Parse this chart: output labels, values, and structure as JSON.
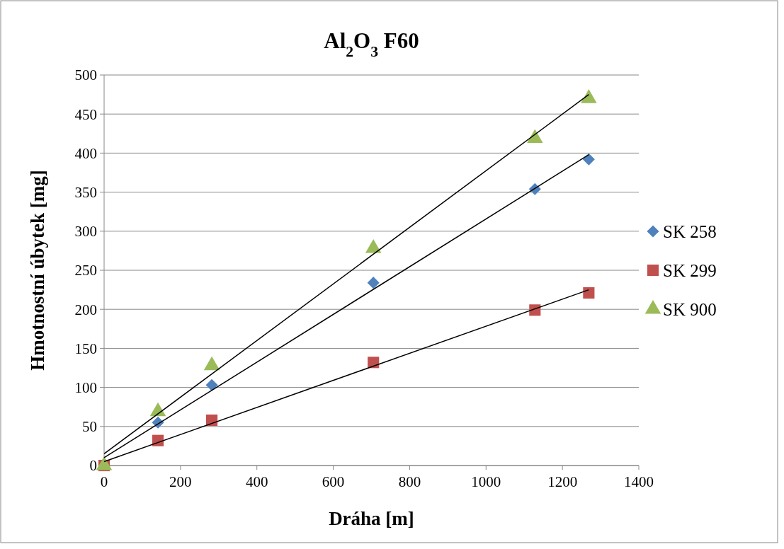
{
  "chart_data": {
    "type": "scatter",
    "title": "Al$_{2}$O$_{3}$ F60",
    "xlabel": "Dráha [m]",
    "ylabel": "Hmotnostní úbytek [mg]",
    "xlim": [
      0,
      1400
    ],
    "xticks": [
      0,
      200,
      400,
      600,
      800,
      1000,
      1200,
      1400
    ],
    "ylim": [
      0,
      500
    ],
    "yticks": [
      0,
      50,
      100,
      150,
      200,
      250,
      300,
      350,
      400,
      450,
      500
    ],
    "grid": "y",
    "legend": "right",
    "series": [
      {
        "name": "SK 258",
        "color": "#4f81bd",
        "marker": "diamond",
        "x": [
          141,
          282,
          705,
          1128,
          1269
        ],
        "values": [
          55,
          103,
          234,
          354,
          392
        ]
      },
      {
        "name": "SK 299",
        "color": "#c0504d",
        "marker": "square",
        "x": [
          0,
          141,
          282,
          705,
          1128,
          1269
        ],
        "values": [
          0,
          32,
          58,
          132,
          199,
          221
        ]
      },
      {
        "name": "SK 900",
        "color": "#9bbb59",
        "marker": "triangle",
        "x": [
          0,
          141,
          282,
          705,
          1128,
          1269
        ],
        "values": [
          0,
          69,
          128,
          278,
          419,
          470
        ]
      },
      {
        "type": "line",
        "color": "#000000",
        "x": [
          0,
          1269
        ],
        "values": [
          10,
          398
        ]
      },
      {
        "type": "line",
        "color": "#000000",
        "x": [
          0,
          1269
        ],
        "values": [
          5,
          225
        ]
      },
      {
        "type": "line",
        "color": "#000000",
        "x": [
          0,
          1269
        ],
        "values": [
          15,
          475
        ]
      }
    ]
  }
}
